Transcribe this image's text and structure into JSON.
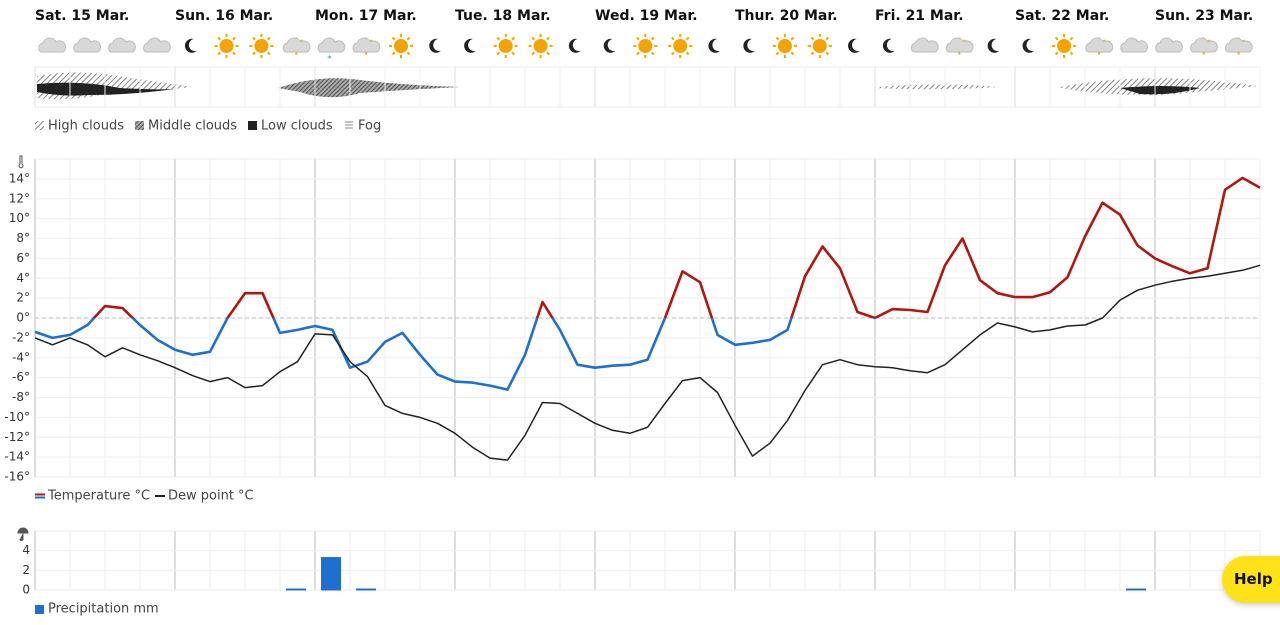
{
  "clouds_legend": [
    "High clouds",
    "Middle clouds",
    "Low clouds",
    "Fog"
  ],
  "help": "Help",
  "chart_data": {
    "type": "line",
    "categories": [
      "Sat. 15 Mar.",
      null,
      null,
      null,
      null,
      null,
      null,
      null,
      "Sun. 16 Mar.",
      null,
      null,
      null,
      null,
      null,
      null,
      null,
      "Mon. 17 Mar.",
      null,
      null,
      null,
      null,
      null,
      null,
      null,
      "Tue. 18 Mar.",
      null,
      null,
      null,
      null,
      null,
      null,
      null,
      "Wed. 19 Mar.",
      null,
      null,
      null,
      null,
      null,
      null,
      null,
      "Thur. 20 Mar.",
      null,
      null,
      null,
      null,
      null,
      null,
      null,
      "Fri. 21 Mar.",
      null,
      null,
      null,
      null,
      null,
      null,
      null,
      "Sat. 22 Mar.",
      null,
      null,
      null,
      null,
      null,
      null,
      null,
      "Sun. 23 Mar.",
      null,
      null,
      null,
      null,
      null,
      null
    ],
    "ylim": [
      -16,
      16
    ],
    "yticks": [
      {
        "value": 14,
        "label": "14°"
      },
      {
        "value": 12,
        "label": "12°"
      },
      {
        "value": 10,
        "label": "10°"
      },
      {
        "value": 8,
        "label": "8°"
      },
      {
        "value": 6,
        "label": "6°"
      },
      {
        "value": 4,
        "label": "4°"
      },
      {
        "value": 2,
        "label": "2°"
      },
      {
        "value": 0,
        "label": "0°"
      },
      {
        "value": -2,
        "label": "-2°"
      },
      {
        "value": -4,
        "label": "-4°"
      },
      {
        "value": -6,
        "label": "-6°"
      },
      {
        "value": -8,
        "label": "-8°"
      },
      {
        "value": -10,
        "label": "-10°"
      },
      {
        "value": -12,
        "label": "-12°"
      },
      {
        "value": -14,
        "label": "-14°"
      },
      {
        "value": -16,
        "label": "-16°"
      }
    ],
    "y2lim": [
      0,
      6
    ],
    "y2ticks": [
      0,
      2,
      4
    ],
    "grid": true,
    "series": [
      {
        "name": "Temperature °C",
        "type": "line",
        "color": "#b0170f",
        "color_below_zero": "#1f6fd1",
        "values": [
          -1.4,
          -2,
          -1.7,
          -0.7,
          1.2,
          1.0,
          -0.7,
          -2.2,
          -3.2,
          -3.7,
          -3.4,
          0,
          2.5,
          2.5,
          -1.5,
          -1.2,
          -0.8,
          -1.2,
          -5,
          -4.4,
          -2.4,
          -1.5,
          -3.7,
          -5.7,
          -6.4,
          -6.5,
          -6.8,
          -7.2,
          -3.7,
          1.6,
          -1.2,
          -4.7,
          -5,
          -4.8,
          -4.7,
          -4.2,
          0,
          4.7,
          3.6,
          -1.7,
          -2.7,
          -2.5,
          -2.2,
          -1.2,
          4.2,
          7.2,
          5,
          0.6,
          0,
          0.9,
          0.8,
          0.6,
          5.3,
          8,
          3.8,
          2.5,
          2.1,
          2.1,
          2.6,
          4.1,
          8.2,
          11.6,
          10.4,
          7.3,
          6,
          5.2,
          4.5,
          5,
          12.9,
          14.1,
          13.1
        ]
      },
      {
        "name": "Dew point °C",
        "type": "line",
        "color": "#222222",
        "values": [
          -2,
          -2.7,
          -2,
          -2.7,
          -3.9,
          -3,
          -3.7,
          -4.3,
          -5,
          -5.8,
          -6.4,
          -6,
          -7,
          -6.8,
          -5.4,
          -4.4,
          -1.6,
          -1.7,
          -4.4,
          -5.9,
          -8.8,
          -9.6,
          -10,
          -10.6,
          -11.6,
          -13,
          -14.1,
          -14.3,
          -11.8,
          -8.5,
          -8.6,
          -9.6,
          -10.6,
          -11.3,
          -11.6,
          -11,
          -8.6,
          -6.3,
          -6,
          -7.5,
          -10.8,
          -13.9,
          -12.6,
          -10.3,
          -7.3,
          -4.7,
          -4.2,
          -4.7,
          -4.9,
          -5,
          -5.3,
          -5.5,
          -4.7,
          -3.2,
          -1.7,
          -0.5,
          -0.9,
          -1.4,
          -1.2,
          -0.8,
          -0.7,
          0,
          1.8,
          2.8,
          3.3,
          3.7,
          4,
          4.2,
          4.5,
          4.8,
          5.3
        ]
      },
      {
        "name": "Precipitation mm",
        "type": "bar",
        "axis": "y2",
        "color": "#1f6fd1",
        "values": [
          0,
          0,
          0,
          0,
          0,
          0,
          0,
          0,
          0,
          0,
          0,
          0,
          0,
          0,
          0.1,
          0,
          3.3,
          0,
          0.1,
          0,
          0,
          0,
          0,
          0,
          0,
          0,
          0,
          0,
          0,
          0,
          0,
          0,
          0,
          0,
          0,
          0,
          0,
          0,
          0,
          0,
          0,
          0,
          0,
          0,
          0,
          0,
          0,
          0,
          0,
          0,
          0,
          0,
          0,
          0,
          0,
          0,
          0,
          0,
          0,
          0,
          0,
          0,
          0.1,
          0,
          0,
          0,
          0,
          0,
          0,
          0,
          0
        ]
      }
    ]
  }
}
